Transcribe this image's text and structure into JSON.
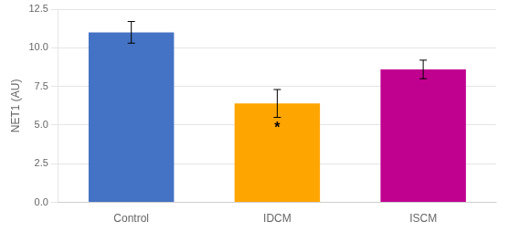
{
  "chart_data": {
    "type": "bar",
    "categories": [
      "Control",
      "IDCM",
      "ISCM"
    ],
    "values": [
      11.0,
      6.4,
      8.6
    ],
    "errors": [
      0.7,
      0.9,
      0.6
    ],
    "colors": [
      "#4472C4",
      "#FFA500",
      "#C0008F"
    ],
    "ylabel": "NET1 (AU)",
    "ylim": [
      0,
      12.5
    ],
    "yticks": [
      {
        "value": 0,
        "label": "0.0"
      },
      2.5,
      {
        "value": 5,
        "label": "5.0"
      },
      7.5,
      {
        "value": 10,
        "label": "10.0"
      },
      12.5
    ],
    "annotations": [
      {
        "category": "IDCM",
        "text": "*"
      }
    ],
    "grid": true
  }
}
